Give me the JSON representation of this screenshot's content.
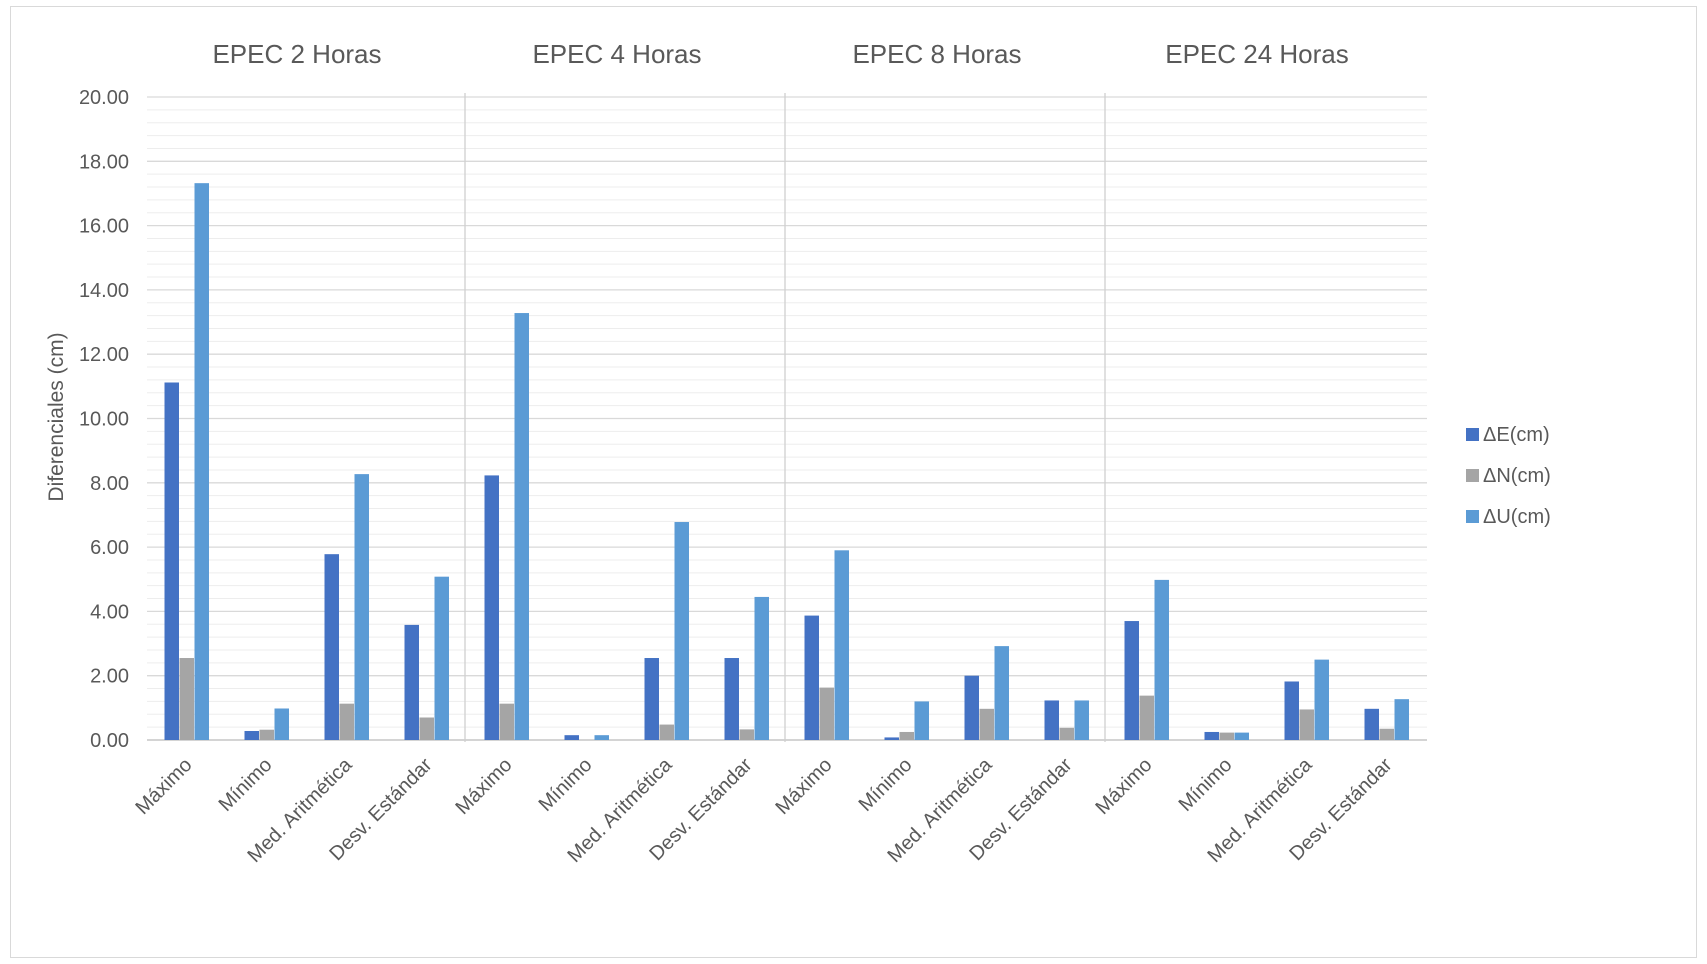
{
  "chart_data": {
    "type": "bar",
    "title": "",
    "ylabel": "Diferenciales (cm)",
    "xlabel": "",
    "ylim": [
      0,
      20
    ],
    "yticks": [
      "0.00",
      "2.00",
      "4.00",
      "6.00",
      "8.00",
      "10.00",
      "12.00",
      "14.00",
      "16.00",
      "18.00",
      "20.00"
    ],
    "legend_position": "right",
    "grid": true,
    "categories": [
      "Máximo",
      "Mínimo",
      "Med. Aritmética",
      "Desv. Estándar"
    ],
    "groups": [
      {
        "name": "EPEC 2 Horas",
        "series": [
          {
            "name": "ΔE(cm)",
            "values": [
              11.12,
              0.28,
              5.78,
              3.58
            ]
          },
          {
            "name": "ΔN(cm)",
            "values": [
              2.55,
              0.32,
              1.13,
              0.7
            ]
          },
          {
            "name": "ΔU(cm)",
            "values": [
              17.32,
              0.98,
              8.27,
              5.08
            ]
          }
        ]
      },
      {
        "name": "EPEC 4 Horas",
        "series": [
          {
            "name": "ΔE(cm)",
            "values": [
              8.23,
              0.15,
              2.55,
              2.55
            ]
          },
          {
            "name": "ΔN(cm)",
            "values": [
              1.13,
              0.0,
              0.48,
              0.33
            ]
          },
          {
            "name": "ΔU(cm)",
            "values": [
              13.28,
              0.15,
              6.78,
              4.45
            ]
          }
        ]
      },
      {
        "name": "EPEC 8 Horas",
        "series": [
          {
            "name": "ΔE(cm)",
            "values": [
              3.87,
              0.08,
              2.0,
              1.23
            ]
          },
          {
            "name": "ΔN(cm)",
            "values": [
              1.63,
              0.25,
              0.97,
              0.38
            ]
          },
          {
            "name": "ΔU(cm)",
            "values": [
              5.9,
              1.2,
              2.92,
              1.23
            ]
          }
        ]
      },
      {
        "name": "EPEC 24 Horas",
        "series": [
          {
            "name": "ΔE(cm)",
            "values": [
              3.7,
              0.25,
              1.82,
              0.97
            ]
          },
          {
            "name": "ΔN(cm)",
            "values": [
              1.38,
              0.23,
              0.95,
              0.35
            ]
          },
          {
            "name": "ΔU(cm)",
            "values": [
              4.98,
              0.23,
              2.5,
              1.27
            ]
          }
        ]
      }
    ],
    "colors": [
      "#4472C4",
      "#A5A5A5",
      "#5B9BD5"
    ],
    "gridline_color": "#d9d9d9",
    "minor_gridline_color": "#ededed"
  }
}
